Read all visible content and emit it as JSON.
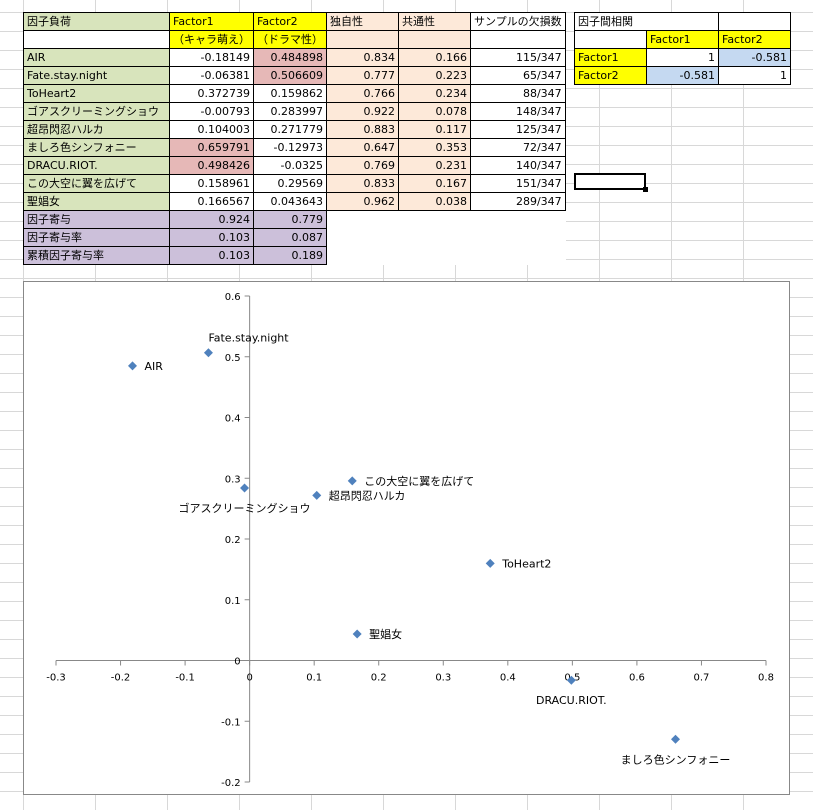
{
  "loadings_table": {
    "title": "因子負荷",
    "factor1_label": "Factor1",
    "factor1_sub": "（キャラ萌え）",
    "factor2_label": "Factor2",
    "factor2_sub": "（ドラマ性）",
    "uniqueness_label": "独自性",
    "communality_label": "共通性",
    "missing_label": "サンプルの欠損数",
    "rows": [
      {
        "name": "AIR",
        "f1": "-0.18149",
        "f2": "0.484898",
        "uniq": "0.834",
        "comm": "0.166",
        "missing": "115/347"
      },
      {
        "name": "Fate.stay.night",
        "f1": "-0.06381",
        "f2": "0.506609",
        "uniq": "0.777",
        "comm": "0.223",
        "missing": "65/347"
      },
      {
        "name": "ToHeart2",
        "f1": "0.372739",
        "f2": "0.159862",
        "uniq": "0.766",
        "comm": "0.234",
        "missing": "88/347"
      },
      {
        "name": "ゴアスクリーミングショウ",
        "f1": "-0.00793",
        "f2": "0.283997",
        "uniq": "0.922",
        "comm": "0.078",
        "missing": "148/347"
      },
      {
        "name": "超昂閃忍ハルカ",
        "f1": "0.104003",
        "f2": "0.271779",
        "uniq": "0.883",
        "comm": "0.117",
        "missing": "125/347"
      },
      {
        "name": "ましろ色シンフォニー",
        "f1": "0.659791",
        "f2": "-0.12973",
        "uniq": "0.647",
        "comm": "0.353",
        "missing": "72/347"
      },
      {
        "name": "DRACU.RIOT.",
        "f1": "0.498426",
        "f2": "-0.0325",
        "uniq": "0.769",
        "comm": "0.231",
        "missing": "140/347"
      },
      {
        "name": "この大空に翼を広げて",
        "f1": "0.158961",
        "f2": "0.29569",
        "uniq": "0.833",
        "comm": "0.167",
        "missing": "151/347"
      },
      {
        "name": "聖娼女",
        "f1": "0.166567",
        "f2": "0.043643",
        "uniq": "0.962",
        "comm": "0.038",
        "missing": "289/347"
      }
    ],
    "summary_rows": [
      {
        "label": "因子寄与",
        "f1": "0.924",
        "f2": "0.779"
      },
      {
        "label": "因子寄与率",
        "f1": "0.103",
        "f2": "0.087"
      },
      {
        "label": "累積因子寄与率",
        "f1": "0.103",
        "f2": "0.189"
      }
    ]
  },
  "correlation_table": {
    "title": "因子間相関",
    "col1": "Factor1",
    "col2": "Factor2",
    "rows": [
      {
        "label": "Factor1",
        "v1": "1",
        "v2": "-0.581"
      },
      {
        "label": "Factor2",
        "v1": "-0.581",
        "v2": "1"
      }
    ]
  },
  "colors": {
    "marker": "#4f81bd",
    "header_yellow": "#ffff00",
    "item_green": "#d8e4bc",
    "peach": "#fde9d9",
    "highlight_red": "#e6b8b7",
    "summary_lavender": "#ccc0da",
    "corr_blue": "#c5d9f1"
  },
  "chart_data": {
    "type": "scatter",
    "title": "",
    "xlabel": "",
    "ylabel": "",
    "xlim": [
      -0.3,
      0.8
    ],
    "ylim": [
      -0.2,
      0.6
    ],
    "xticks": [
      "-0.3",
      "-0.2",
      "-0.1",
      "0",
      "0.1",
      "0.2",
      "0.3",
      "0.4",
      "0.5",
      "0.6",
      "0.7",
      "0.8"
    ],
    "yticks": [
      "-0.2",
      "-0.1",
      "0",
      "0.1",
      "0.2",
      "0.3",
      "0.4",
      "0.5",
      "0.6"
    ],
    "grid": false,
    "legend": "none",
    "points": [
      {
        "label": "AIR",
        "x": -0.18149,
        "y": 0.484898,
        "label_pos": "right"
      },
      {
        "label": "Fate.stay.night",
        "x": -0.06381,
        "y": 0.506609,
        "label_pos": "above"
      },
      {
        "label": "ToHeart2",
        "x": 0.372739,
        "y": 0.159862,
        "label_pos": "right"
      },
      {
        "label": "ゴアスクリーミングショウ",
        "x": -0.00793,
        "y": 0.283997,
        "label_pos": "below"
      },
      {
        "label": "超昂閃忍ハルカ",
        "x": 0.104003,
        "y": 0.271779,
        "label_pos": "right"
      },
      {
        "label": "ましろ色シンフォニー",
        "x": 0.659791,
        "y": -0.12973,
        "label_pos": "below"
      },
      {
        "label": "DRACU.RIOT.",
        "x": 0.498426,
        "y": -0.0325,
        "label_pos": "below"
      },
      {
        "label": "この大空に翼を広げて",
        "x": 0.158961,
        "y": 0.29569,
        "label_pos": "right"
      },
      {
        "label": "聖娼女",
        "x": 0.166567,
        "y": 0.043643,
        "label_pos": "right"
      }
    ]
  }
}
